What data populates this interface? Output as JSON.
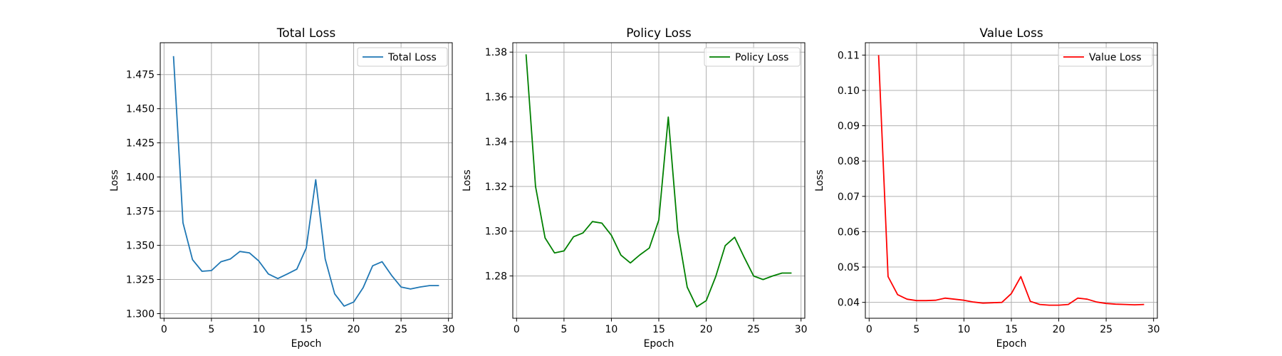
{
  "chart_data": [
    {
      "type": "line",
      "title": "Total Loss",
      "xlabel": "Epoch",
      "ylabel": "Loss",
      "xlim": [
        -0.4,
        30.4
      ],
      "ylim": [
        1.2966,
        1.4983
      ],
      "xticks": [
        0,
        5,
        10,
        15,
        20,
        25,
        30
      ],
      "yticks": [
        1.3,
        1.325,
        1.35,
        1.375,
        1.4,
        1.425,
        1.45,
        1.475
      ],
      "ytick_labels": [
        "1.300",
        "1.325",
        "1.350",
        "1.375",
        "1.400",
        "1.425",
        "1.450",
        "1.475"
      ],
      "grid": true,
      "legend": "upper right",
      "series": [
        {
          "name": "Total Loss",
          "color": "#1f77b4",
          "x": [
            1,
            2,
            3,
            4,
            5,
            6,
            7,
            8,
            9,
            10,
            11,
            12,
            13,
            14,
            15,
            16,
            17,
            18,
            19,
            20,
            21,
            22,
            23,
            24,
            25,
            26,
            27,
            28,
            29
          ],
          "y": [
            1.4885,
            1.3665,
            1.3395,
            1.331,
            1.3315,
            1.338,
            1.34,
            1.3455,
            1.3445,
            1.3385,
            1.329,
            1.3257,
            1.329,
            1.3325,
            1.348,
            1.398,
            1.34,
            1.3145,
            1.3055,
            1.3085,
            1.319,
            1.335,
            1.338,
            1.328,
            1.3195,
            1.318,
            1.3195,
            1.3205,
            1.3205
          ]
        }
      ]
    },
    {
      "type": "line",
      "title": "Policy Loss",
      "xlabel": "Epoch",
      "ylabel": "Loss",
      "xlim": [
        -0.4,
        30.4
      ],
      "ylim": [
        1.2611,
        1.3842
      ],
      "xticks": [
        0,
        5,
        10,
        15,
        20,
        25,
        30
      ],
      "yticks": [
        1.28,
        1.3,
        1.32,
        1.34,
        1.36,
        1.38
      ],
      "ytick_labels": [
        "1.28",
        "1.30",
        "1.32",
        "1.34",
        "1.36",
        "1.38"
      ],
      "grid": true,
      "legend": "upper right",
      "series": [
        {
          "name": "Policy Loss",
          "color": "#008000",
          "x": [
            1,
            2,
            3,
            4,
            5,
            6,
            7,
            8,
            9,
            10,
            11,
            12,
            13,
            14,
            15,
            16,
            17,
            18,
            19,
            20,
            21,
            22,
            23,
            24,
            25,
            26,
            27,
            28,
            29
          ],
          "y": [
            1.379,
            1.32,
            1.297,
            1.2903,
            1.2912,
            1.2975,
            1.2992,
            1.3043,
            1.3036,
            1.2982,
            1.2893,
            1.2858,
            1.2894,
            1.2925,
            1.305,
            1.351,
            1.3,
            1.275,
            1.2662,
            1.269,
            1.2797,
            1.2935,
            1.2973,
            1.2884,
            1.28,
            1.2784,
            1.28,
            1.2813,
            1.2813
          ]
        }
      ]
    },
    {
      "type": "line",
      "title": "Value Loss",
      "xlabel": "Epoch",
      "ylabel": "Loss",
      "xlim": [
        -0.4,
        30.4
      ],
      "ylim": [
        0.0355,
        0.1135
      ],
      "xticks": [
        0,
        5,
        10,
        15,
        20,
        25,
        30
      ],
      "yticks": [
        0.04,
        0.05,
        0.06,
        0.07,
        0.08,
        0.09,
        0.1,
        0.11
      ],
      "ytick_labels": [
        "0.04",
        "0.05",
        "0.06",
        "0.07",
        "0.08",
        "0.09",
        "0.10",
        "0.11"
      ],
      "grid": true,
      "legend": "upper right",
      "series": [
        {
          "name": "Value Loss",
          "color": "#ff0000",
          "x": [
            1,
            2,
            3,
            4,
            5,
            6,
            7,
            8,
            9,
            10,
            11,
            12,
            13,
            14,
            15,
            16,
            17,
            18,
            19,
            20,
            21,
            22,
            23,
            24,
            25,
            26,
            27,
            28,
            29
          ],
          "y": [
            0.11,
            0.0473,
            0.0422,
            0.0409,
            0.0405,
            0.0405,
            0.0406,
            0.0412,
            0.0409,
            0.0406,
            0.0401,
            0.0398,
            0.0399,
            0.04,
            0.0425,
            0.0473,
            0.0403,
            0.0394,
            0.0392,
            0.0392,
            0.0394,
            0.0412,
            0.0409,
            0.0401,
            0.0397,
            0.0395,
            0.0394,
            0.0393,
            0.0394
          ]
        }
      ]
    }
  ]
}
